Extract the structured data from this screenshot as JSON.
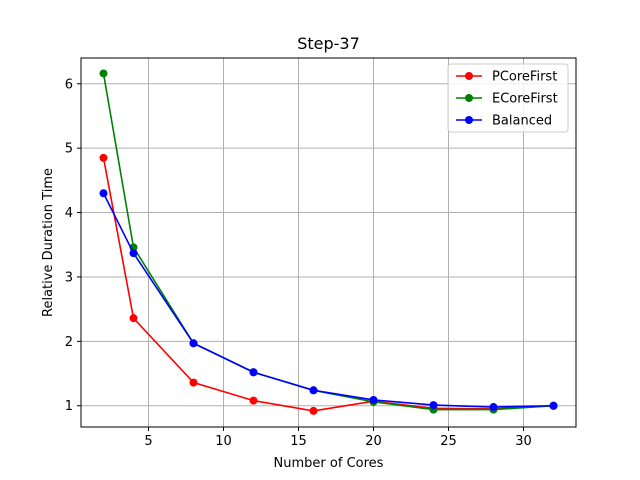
{
  "chart_data": {
    "type": "line",
    "title": "Step-37",
    "xlabel": "Number of Cores",
    "ylabel": "Relative Duration Time",
    "xlim": [
      0.5,
      33.5
    ],
    "ylim": [
      0.67,
      6.4
    ],
    "x_ticks": [
      5,
      10,
      15,
      20,
      25,
      30
    ],
    "y_ticks": [
      1,
      2,
      3,
      4,
      5,
      6
    ],
    "grid": true,
    "legend_position": "top-right",
    "x": [
      2,
      4,
      8,
      12,
      16,
      20,
      24,
      28,
      32
    ],
    "series": [
      {
        "name": "PCoreFirst",
        "color": "#ff0000",
        "values": [
          4.85,
          2.36,
          1.36,
          1.08,
          0.92,
          1.07,
          0.96,
          0.95,
          1.0
        ]
      },
      {
        "name": "ECoreFirst",
        "color": "#008000",
        "values": [
          6.16,
          3.46,
          1.97,
          1.52,
          1.24,
          1.06,
          0.94,
          0.94,
          1.0
        ]
      },
      {
        "name": "Balanced",
        "color": "#0000ff",
        "values": [
          4.3,
          3.37,
          1.97,
          1.52,
          1.24,
          1.09,
          1.01,
          0.98,
          1.0
        ]
      }
    ]
  }
}
